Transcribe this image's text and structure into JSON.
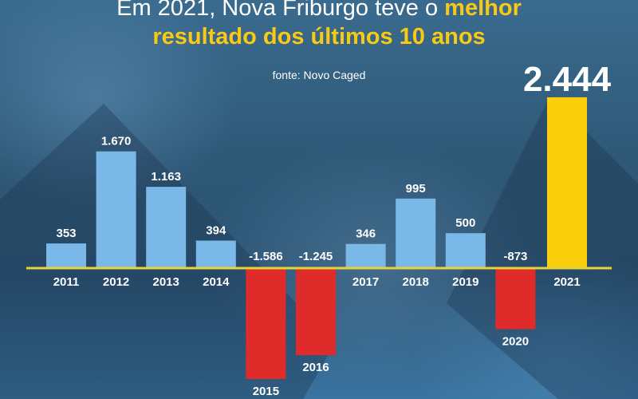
{
  "header": {
    "title_prefix": "Em 2021, Nova Friburgo teve o ",
    "title_highlight": "melhor",
    "title_line2": "resultado dos últimos 10 anos",
    "source": "fonte: Novo Caged"
  },
  "chart_data": {
    "type": "bar",
    "title": "Em 2021, Nova Friburgo teve o melhor resultado dos últimos 10 anos",
    "subtitle": "fonte: Novo Caged",
    "xlabel": "",
    "ylabel": "",
    "categories": [
      "2011",
      "2012",
      "2013",
      "2014",
      "2015",
      "2016",
      "2017",
      "2018",
      "2019",
      "2020",
      "2021"
    ],
    "values": [
      353,
      1670,
      1163,
      394,
      -1586,
      -1245,
      346,
      995,
      500,
      -873,
      2444
    ],
    "labels": [
      "353",
      "1.670",
      "1.163",
      "394",
      "-1.586",
      "-1.245",
      "346",
      "995",
      "500",
      "-873",
      "2.444"
    ],
    "highlight_category": "2021",
    "ylim": [
      -1600,
      2450
    ],
    "grid": false,
    "colors": {
      "positive": "#7ab8e8",
      "negative": "#e02b2b",
      "highlight": "#fccf0c",
      "axis": "#e8d23a"
    }
  }
}
